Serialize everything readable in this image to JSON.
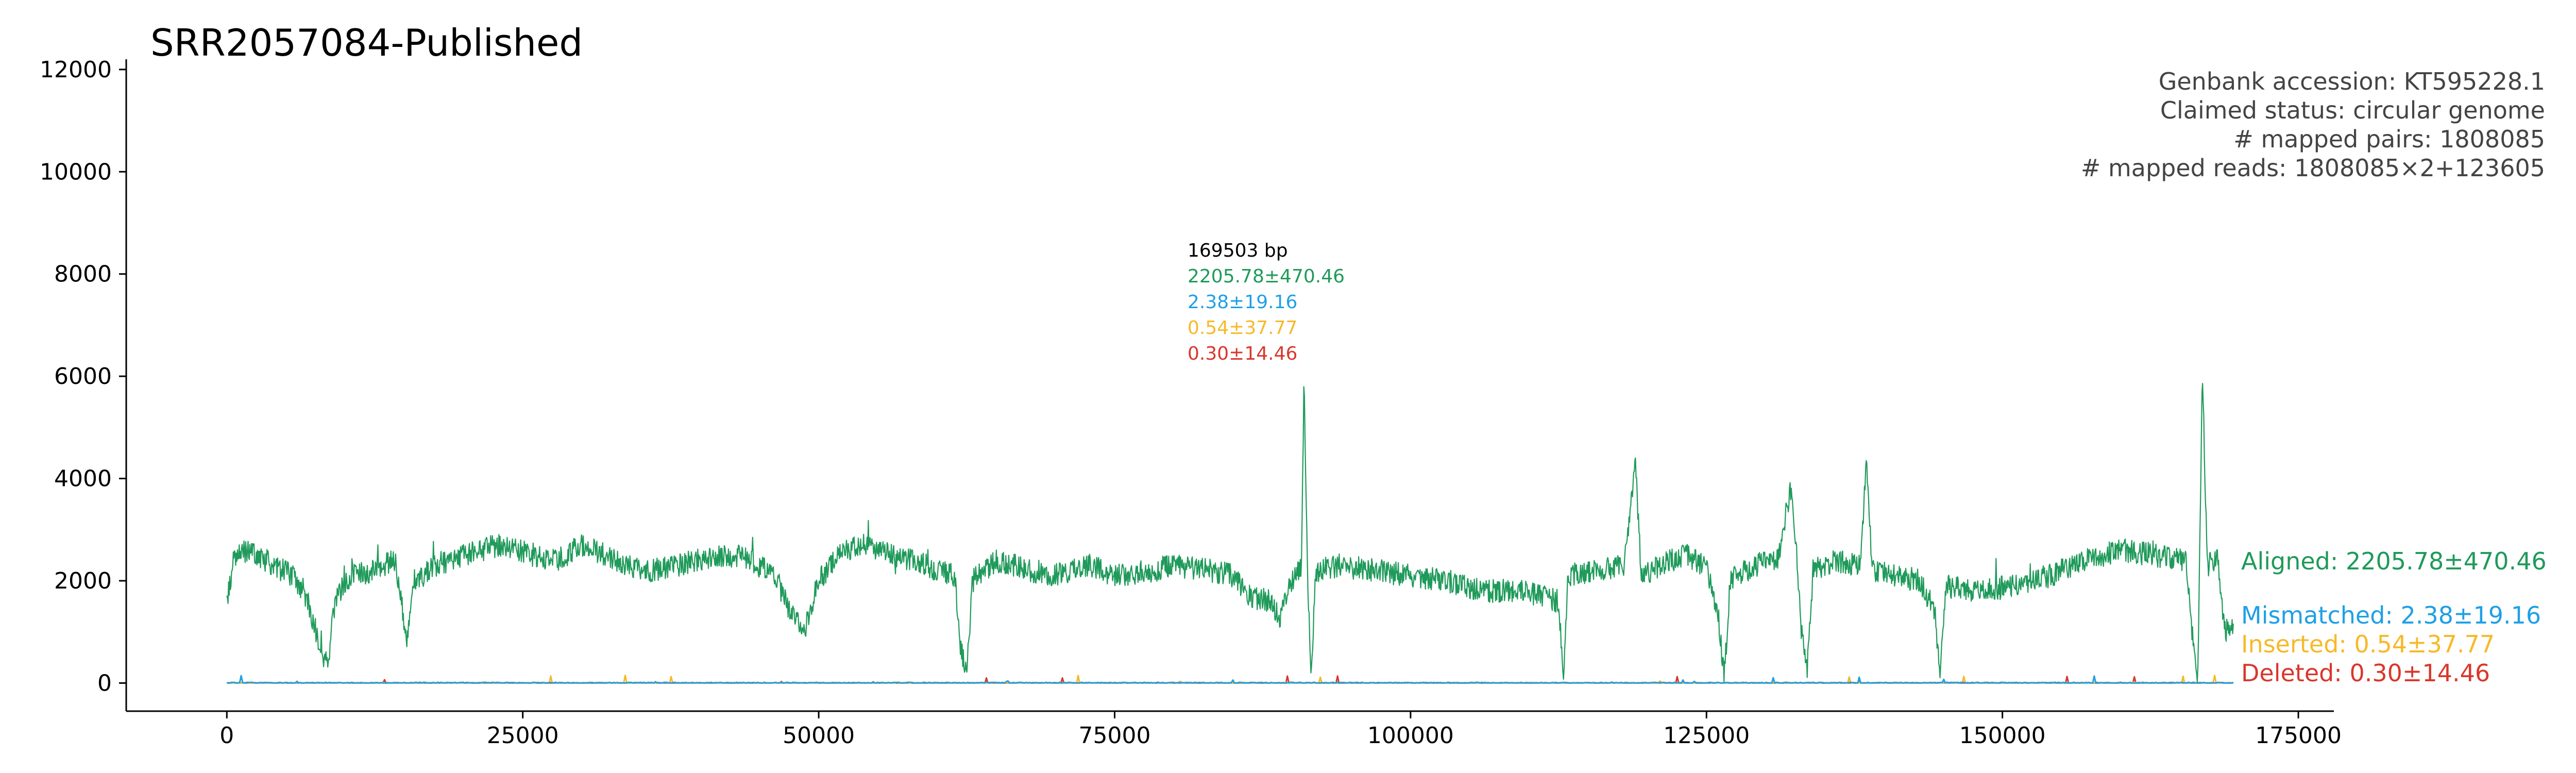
{
  "chart_data": {
    "type": "line",
    "title": "SRR2057084-Published",
    "xlabel": "",
    "ylabel": "",
    "xlim": [
      -8500,
      178000
    ],
    "ylim": [
      -550,
      12200
    ],
    "x_ticks": [
      0,
      25000,
      50000,
      75000,
      100000,
      125000,
      150000,
      175000
    ],
    "y_ticks": [
      0,
      2000,
      4000,
      6000,
      8000,
      10000,
      12000
    ],
    "x_tick_labels": [
      "0",
      "25000",
      "50000",
      "75000",
      "100000",
      "125000",
      "150000",
      "175000"
    ],
    "y_tick_labels": [
      "0",
      "2000",
      "4000",
      "6000",
      "8000",
      "10000",
      "12000"
    ],
    "grid": false,
    "genome_length": 169503,
    "info_lines": [
      "Genbank accession: KT595228.1",
      "Claimed status: circular genome",
      "# mapped pairs: 1808085",
      "# mapped reads: 1808085×2+123605"
    ],
    "annotation": {
      "length_label": "169503 bp",
      "lines": [
        "2205.78±470.46",
        "2.38±19.16",
        "0.54±37.77",
        "0.30±14.46"
      ]
    },
    "series": [
      {
        "name": "Aligned",
        "label": "Aligned: 2205.78±470.46",
        "color": "#1f9a5a",
        "mean": 2205.78,
        "std": 470.46,
        "profile": [
          [
            0,
            1500
          ],
          [
            600,
            2500
          ],
          [
            2000,
            2600
          ],
          [
            4000,
            2300
          ],
          [
            5500,
            2100
          ],
          [
            6500,
            1800
          ],
          [
            7200,
            1300
          ],
          [
            7800,
            800
          ],
          [
            8500,
            300
          ],
          [
            9200,
            1700
          ],
          [
            10500,
            2100
          ],
          [
            12500,
            2200
          ],
          [
            14200,
            2400
          ],
          [
            14800,
            1500
          ],
          [
            15200,
            700
          ],
          [
            15700,
            2000
          ],
          [
            17500,
            2300
          ],
          [
            20000,
            2500
          ],
          [
            23000,
            2700
          ],
          [
            26000,
            2500
          ],
          [
            28000,
            2400
          ],
          [
            30000,
            2700
          ],
          [
            32000,
            2500
          ],
          [
            34000,
            2300
          ],
          [
            36000,
            2200
          ],
          [
            38000,
            2300
          ],
          [
            40000,
            2400
          ],
          [
            43000,
            2500
          ],
          [
            45000,
            2300
          ],
          [
            46500,
            2000
          ],
          [
            47500,
            1400
          ],
          [
            48800,
            1000
          ],
          [
            50000,
            2000
          ],
          [
            52000,
            2600
          ],
          [
            54000,
            2700
          ],
          [
            56000,
            2500
          ],
          [
            58000,
            2400
          ],
          [
            60000,
            2200
          ],
          [
            61500,
            2100
          ],
          [
            62000,
            700
          ],
          [
            62500,
            100
          ],
          [
            63000,
            2000
          ],
          [
            65000,
            2400
          ],
          [
            68000,
            2200
          ],
          [
            70000,
            2100
          ],
          [
            73000,
            2300
          ],
          [
            75000,
            2100
          ],
          [
            78000,
            2200
          ],
          [
            80000,
            2300
          ],
          [
            83000,
            2200
          ],
          [
            85000,
            2100
          ],
          [
            86500,
            1700
          ],
          [
            88000,
            1600
          ],
          [
            89000,
            1300
          ],
          [
            90000,
            2000
          ],
          [
            90800,
            2300
          ],
          [
            91000,
            6200
          ],
          [
            91300,
            2000
          ],
          [
            91600,
            100
          ],
          [
            92000,
            2200
          ],
          [
            94000,
            2300
          ],
          [
            97000,
            2200
          ],
          [
            100000,
            2100
          ],
          [
            103000,
            2000
          ],
          [
            106000,
            1800
          ],
          [
            109000,
            1800
          ],
          [
            111000,
            1700
          ],
          [
            112500,
            1600
          ],
          [
            112900,
            100
          ],
          [
            113300,
            2100
          ],
          [
            116000,
            2200
          ],
          [
            118000,
            2300
          ],
          [
            119000,
            4300
          ],
          [
            119500,
            2100
          ],
          [
            121000,
            2300
          ],
          [
            123000,
            2500
          ],
          [
            125000,
            2300
          ],
          [
            126000,
            1300
          ],
          [
            126500,
            100
          ],
          [
            127000,
            2000
          ],
          [
            129000,
            2300
          ],
          [
            131000,
            2400
          ],
          [
            132200,
            3900
          ],
          [
            132700,
            2200
          ],
          [
            133000,
            1000
          ],
          [
            133500,
            200
          ],
          [
            134000,
            2200
          ],
          [
            136000,
            2400
          ],
          [
            138000,
            2300
          ],
          [
            138500,
            4300
          ],
          [
            139000,
            2200
          ],
          [
            141000,
            2100
          ],
          [
            143000,
            2000
          ],
          [
            144300,
            1400
          ],
          [
            144700,
            100
          ],
          [
            145200,
            1900
          ],
          [
            148000,
            1800
          ],
          [
            151000,
            1900
          ],
          [
            154000,
            2100
          ],
          [
            157000,
            2400
          ],
          [
            160000,
            2600
          ],
          [
            163000,
            2500
          ],
          [
            165500,
            2400
          ],
          [
            166000,
            1100
          ],
          [
            166500,
            100
          ],
          [
            166900,
            6100
          ],
          [
            167300,
            2300
          ],
          [
            168200,
            2400
          ],
          [
            168800,
            1000
          ],
          [
            169503,
            1200
          ]
        ]
      },
      {
        "name": "Mismatched",
        "label": "Mismatched: 2.38±19.16",
        "color": "#1ea0e6",
        "mean": 2.38,
        "std": 19.16,
        "profile": [
          [
            0,
            5
          ],
          [
            169503,
            5
          ]
        ]
      },
      {
        "name": "Inserted",
        "label": "Inserted: 0.54±37.77",
        "color": "#f7b928",
        "mean": 0.54,
        "std": 37.77,
        "profile": [
          [
            0,
            3
          ],
          [
            169503,
            3
          ]
        ]
      },
      {
        "name": "Deleted",
        "label": "Deleted: 0.30±14.46",
        "color": "#d9372c",
        "mean": 0.3,
        "std": 14.46,
        "profile": [
          [
            0,
            1
          ],
          [
            169503,
            1
          ]
        ]
      }
    ]
  }
}
